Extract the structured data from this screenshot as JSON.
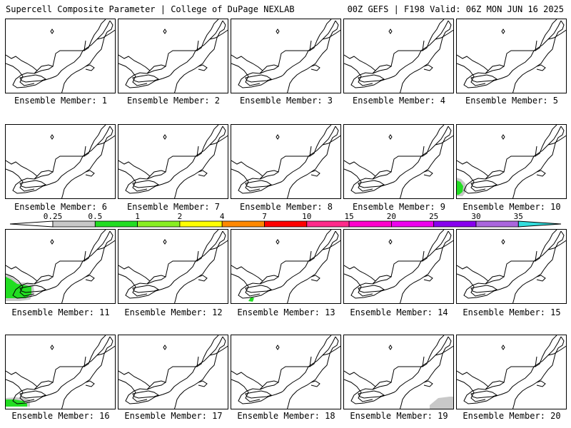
{
  "header": {
    "left": "Supercell Composite Parameter | College of DuPage NEXLAB",
    "right": "00Z GEFS | F198 Valid: 06Z MON JUN 16 2025"
  },
  "caption_prefix": "Ensemble Member: ",
  "members": [
    {
      "label": "Ensemble Member: 1"
    },
    {
      "label": "Ensemble Member: 2"
    },
    {
      "label": "Ensemble Member: 3"
    },
    {
      "label": "Ensemble Member: 4"
    },
    {
      "label": "Ensemble Member: 5"
    },
    {
      "label": "Ensemble Member: 6"
    },
    {
      "label": "Ensemble Member: 7"
    },
    {
      "label": "Ensemble Member: 8"
    },
    {
      "label": "Ensemble Member: 9"
    },
    {
      "label": "Ensemble Member: 10",
      "shading": "sw-small-green"
    },
    {
      "label": "Ensemble Member: 11",
      "shading": "sw-large-green"
    },
    {
      "label": "Ensemble Member: 12"
    },
    {
      "label": "Ensemble Member: 13",
      "shading": "bottom-green-speck"
    },
    {
      "label": "Ensemble Member: 14"
    },
    {
      "label": "Ensemble Member: 15"
    },
    {
      "label": "Ensemble Member: 16",
      "shading": "sw-bottom-green"
    },
    {
      "label": "Ensemble Member: 17"
    },
    {
      "label": "Ensemble Member: 18"
    },
    {
      "label": "Ensemble Member: 19",
      "shading": "se-gray"
    },
    {
      "label": "Ensemble Member: 20"
    }
  ],
  "colorbar": {
    "ticks": [
      "0.25",
      "0.5",
      "1",
      "2",
      "4",
      "7",
      "10",
      "15",
      "20",
      "25",
      "30",
      "35"
    ],
    "colors": [
      "#c8c8c8",
      "#22dd22",
      "#88ee22",
      "#ffff00",
      "#ff8800",
      "#ff0000",
      "#ff2a8a",
      "#ff00cc",
      "#ee00ee",
      "#8800ee",
      "#aa66dd",
      "#33dddd"
    ]
  }
}
